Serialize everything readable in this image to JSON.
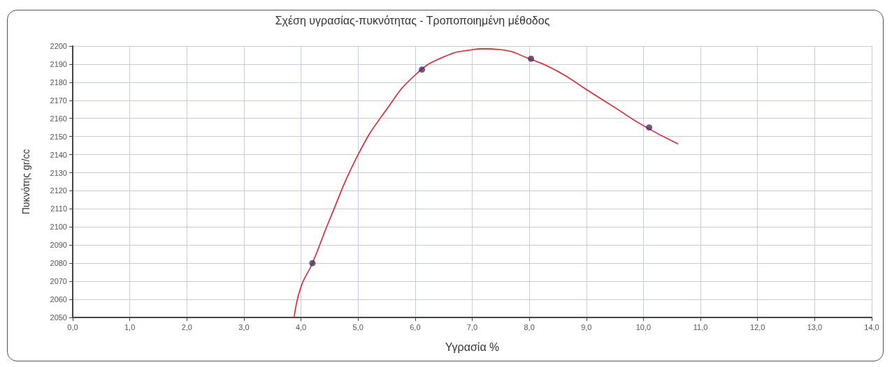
{
  "chart_data": {
    "type": "scatter",
    "title": "Σχέση υγρασίας-πυκνότητας - Τροποποιημένη μέθοδος",
    "xlabel": "Υγρασία %",
    "ylabel": "Πυκνότης gr/cc",
    "series": [
      {
        "color": "#4a2f66",
        "marker": "circle",
        "x": [
          4.2,
          6.12,
          8.03,
          10.1
        ],
        "values": [
          2080,
          2187,
          2193,
          2155
        ]
      },
      {
        "type": "line",
        "color": "#e8202a",
        "marker": "none",
        "line_style": "solid",
        "x": [
          3.88,
          4.0,
          4.2,
          4.5,
          5.0,
          5.5,
          6.0,
          6.5,
          7.0,
          7.2,
          7.5,
          8.0,
          8.5,
          9.0,
          9.5,
          10.0,
          10.6
        ],
        "values": [
          2050,
          2067,
          2080,
          2104,
          2140,
          2165,
          2184,
          2194,
          2198,
          2198.5,
          2198,
          2193,
          2186,
          2176,
          2166,
          2156,
          2146
        ]
      }
    ],
    "xlim": [
      0,
      14
    ],
    "xticks": [
      {
        "value": 0,
        "label": "0,0"
      },
      {
        "value": 1,
        "label": "1,0"
      },
      {
        "value": 2,
        "label": "2,0"
      },
      {
        "value": 3,
        "label": "3,0"
      },
      {
        "value": 4,
        "label": "4,0"
      },
      {
        "value": 5,
        "label": "5,0"
      },
      {
        "value": 6,
        "label": "6,0"
      },
      {
        "value": 7,
        "label": "7,0"
      },
      {
        "value": 8,
        "label": "8,0"
      },
      {
        "value": 9,
        "label": "9,0"
      },
      {
        "value": 10,
        "label": "10,0"
      },
      {
        "value": 11,
        "label": "11,0"
      },
      {
        "value": 12,
        "label": "12,0"
      },
      {
        "value": 13,
        "label": "13,0"
      },
      {
        "value": 14,
        "label": "14,0"
      }
    ],
    "ylim": [
      2050,
      2200
    ],
    "yticks": [
      2050,
      2060,
      2070,
      2080,
      2090,
      2100,
      2110,
      2120,
      2130,
      2140,
      2150,
      2160,
      2170,
      2180,
      2190,
      2200
    ],
    "grid": true
  }
}
